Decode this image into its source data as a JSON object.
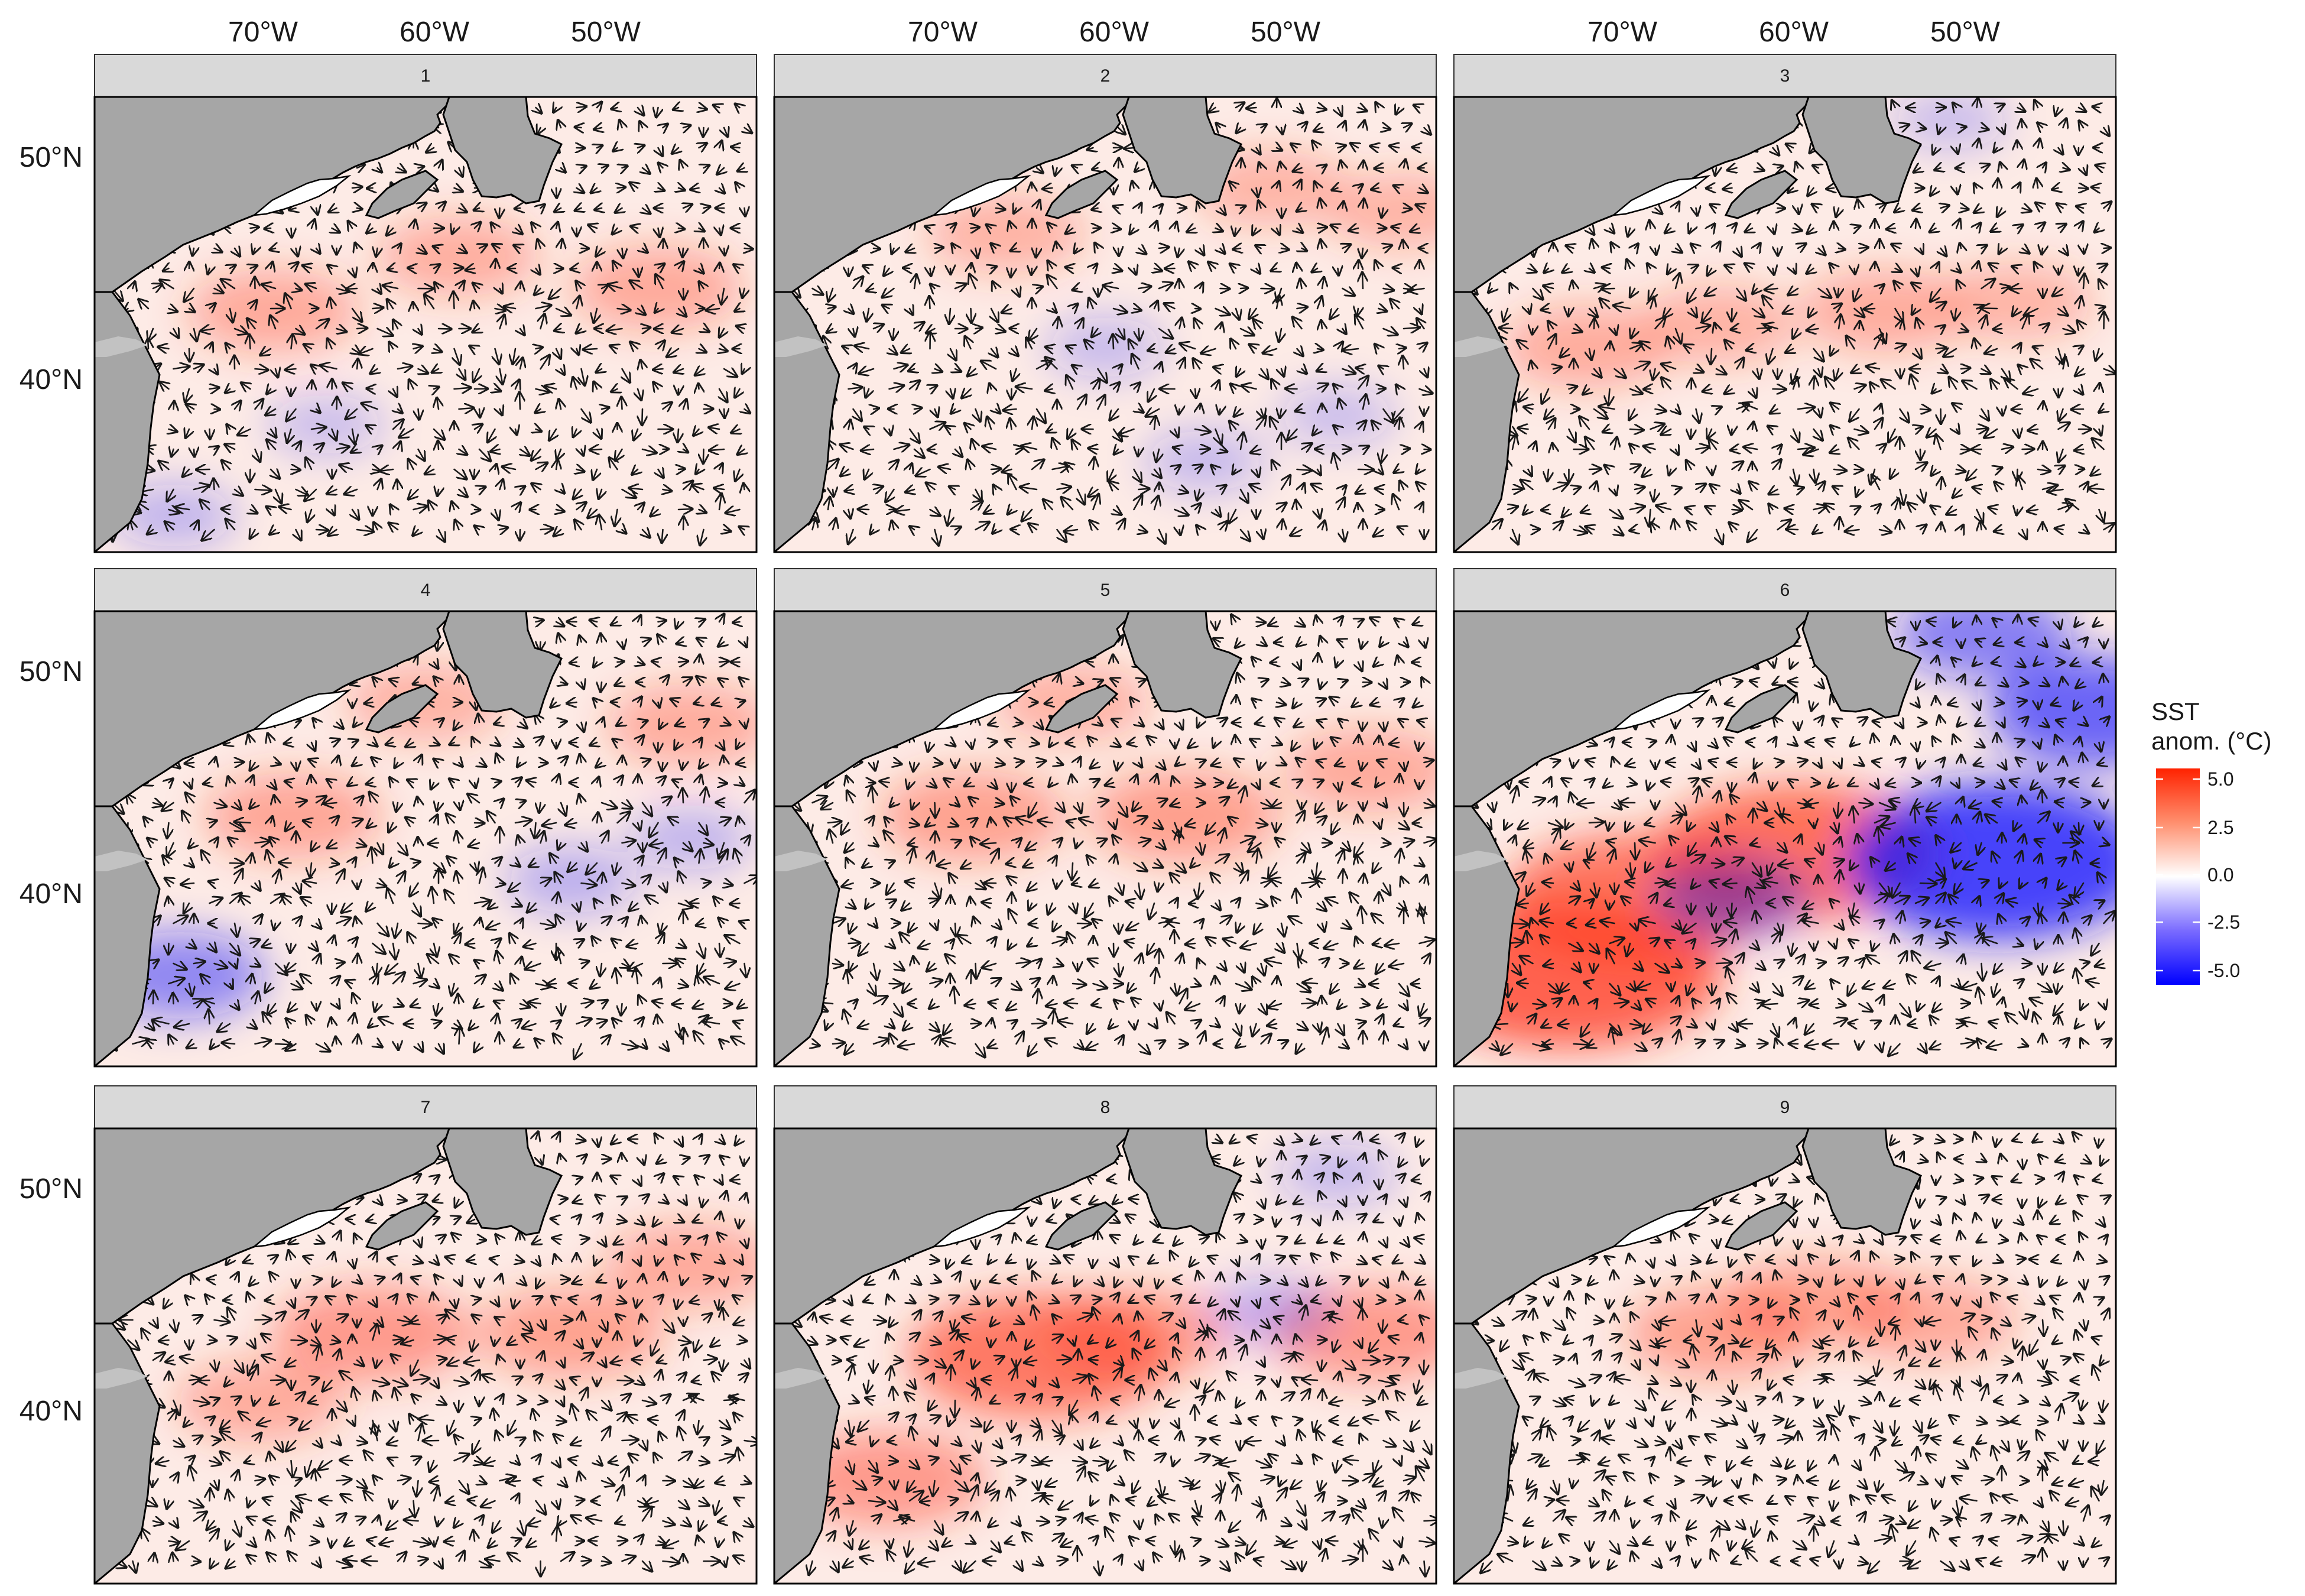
{
  "chart_data": {
    "type": "faceted-map",
    "description_variable": "SST anomaly with vector arrows",
    "x_ticks": [
      "70°W",
      "60°W",
      "50°W"
    ],
    "y_ticks": [
      "50°N",
      "40°N"
    ],
    "legend": {
      "title_line1": "SST",
      "title_line2": "anom. (°C)",
      "ticks": [
        "5.0",
        "2.5",
        "0.0",
        "-2.5",
        "-5.0"
      ],
      "range": [
        -5.7,
        5.7
      ],
      "colors": {
        "low": "#0000ff",
        "mid": "#ffffff",
        "high": "#ff2200"
      }
    },
    "colors": {
      "land": "#a6a6a6",
      "strip": "#d9d9d9",
      "coast": "#000000"
    },
    "panels": [
      {
        "label": "1",
        "hot": [
          [
            0.27,
            0.47,
            0.9
          ],
          [
            0.55,
            0.35,
            0.7
          ],
          [
            0.85,
            0.42,
            0.9
          ]
        ],
        "cold": [
          [
            0.12,
            0.92,
            0.5
          ],
          [
            0.35,
            0.72,
            0.3
          ]
        ]
      },
      {
        "label": "2",
        "hot": [
          [
            0.35,
            0.3,
            0.6
          ],
          [
            0.75,
            0.2,
            0.5
          ],
          [
            0.95,
            0.25,
            0.5
          ]
        ],
        "cold": [
          [
            0.5,
            0.55,
            0.35
          ],
          [
            0.65,
            0.8,
            0.4
          ],
          [
            0.85,
            0.7,
            0.3
          ]
        ]
      },
      {
        "label": "3",
        "hot": [
          [
            0.2,
            0.55,
            0.8
          ],
          [
            0.4,
            0.5,
            0.6
          ],
          [
            0.65,
            0.47,
            0.8
          ],
          [
            0.85,
            0.45,
            0.5
          ]
        ],
        "cold": [
          [
            0.75,
            0.05,
            0.3
          ]
        ]
      },
      {
        "label": "4",
        "hot": [
          [
            0.3,
            0.45,
            1.0
          ],
          [
            0.9,
            0.25,
            0.8
          ],
          [
            0.5,
            0.2,
            0.6
          ]
        ],
        "cold": [
          [
            0.13,
            0.8,
            1.8
          ],
          [
            0.72,
            0.59,
            0.7
          ],
          [
            0.9,
            0.5,
            0.5
          ]
        ]
      },
      {
        "label": "5",
        "hot": [
          [
            0.3,
            0.45,
            1.2
          ],
          [
            0.62,
            0.45,
            1.3
          ],
          [
            0.9,
            0.35,
            0.9
          ],
          [
            0.45,
            0.2,
            0.6
          ]
        ],
        "cold": []
      },
      {
        "label": "6",
        "hot": [
          [
            0.52,
            0.53,
            3.3
          ],
          [
            0.28,
            0.63,
            3.0
          ],
          [
            0.17,
            0.8,
            3.8
          ]
        ],
        "cold": [
          [
            0.82,
            0.55,
            5.5
          ],
          [
            0.97,
            0.22,
            3.0
          ],
          [
            0.8,
            0.05,
            2.0
          ],
          [
            0.42,
            0.63,
            1.5
          ]
        ]
      },
      {
        "label": "7",
        "hot": [
          [
            0.42,
            0.45,
            1.5
          ],
          [
            0.72,
            0.45,
            1.2
          ],
          [
            0.9,
            0.3,
            0.9
          ],
          [
            0.25,
            0.6,
            0.8
          ]
        ],
        "cold": []
      },
      {
        "label": "8",
        "hot": [
          [
            0.4,
            0.5,
            2.8
          ],
          [
            0.9,
            0.45,
            1.5
          ],
          [
            0.17,
            0.77,
            1.5
          ],
          [
            0.55,
            0.45,
            1.2
          ]
        ],
        "cold": [
          [
            0.75,
            0.4,
            0.6
          ],
          [
            0.85,
            0.1,
            0.4
          ]
        ]
      },
      {
        "label": "9",
        "hot": [
          [
            0.4,
            0.45,
            1.2
          ],
          [
            0.55,
            0.38,
            1.1
          ],
          [
            0.72,
            0.42,
            0.9
          ]
        ],
        "cold": []
      }
    ]
  }
}
